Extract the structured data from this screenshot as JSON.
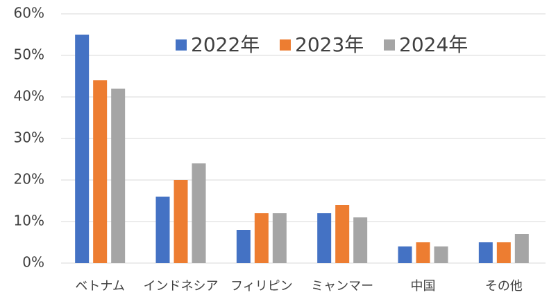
{
  "chart_data": {
    "type": "bar",
    "categories": [
      "ベトナム",
      "インドネシア",
      "フィリピン",
      "ミャンマー",
      "中国",
      "その他"
    ],
    "series": [
      {
        "name": "2022年",
        "color": "#4472c4",
        "values": [
          55,
          16,
          8,
          12,
          4,
          5
        ]
      },
      {
        "name": "2023年",
        "color": "#ed7d31",
        "values": [
          44,
          20,
          12,
          14,
          5,
          5
        ]
      },
      {
        "name": "2024年",
        "color": "#a5a5a5",
        "values": [
          42,
          24,
          12,
          11,
          4,
          7
        ]
      }
    ],
    "ylim": [
      0,
      60
    ],
    "yticks": [
      {
        "value": 0,
        "label": "0%"
      },
      {
        "value": 10,
        "label": "10%"
      },
      {
        "value": 20,
        "label": "20%"
      },
      {
        "value": 30,
        "label": "30%"
      },
      {
        "value": 40,
        "label": "40%"
      },
      {
        "value": 50,
        "label": "50%"
      },
      {
        "value": 60,
        "label": "60%"
      }
    ],
    "grid": true,
    "legend": "top"
  }
}
